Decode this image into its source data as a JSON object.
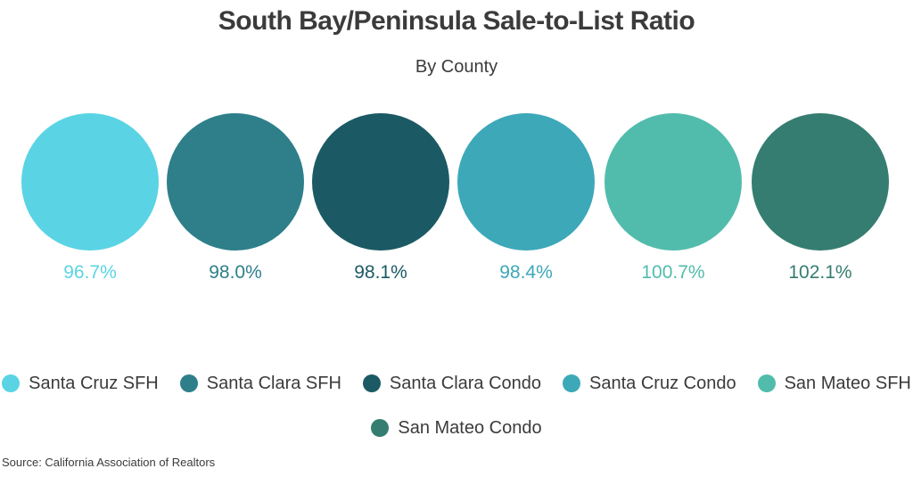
{
  "chart_data": {
    "type": "bubble",
    "title": "South Bay/Peninsula Sale-to-List Ratio",
    "subtitle": "By County",
    "unit": "%",
    "series": [
      {
        "name": "Santa Cruz SFH",
        "value": 96.7,
        "label": "96.7%",
        "color": "#5ad4e4"
      },
      {
        "name": "Santa Clara SFH",
        "value": 98.0,
        "label": "98.0%",
        "color": "#2e7f8a"
      },
      {
        "name": "Santa Clara Condo",
        "value": 98.1,
        "label": "98.1%",
        "color": "#1b5a64"
      },
      {
        "name": "Santa Cruz Condo",
        "value": 98.4,
        "label": "98.4%",
        "color": "#3da8b8"
      },
      {
        "name": "San Mateo SFH",
        "value": 100.7,
        "label": "100.7%",
        "color": "#52bcac"
      },
      {
        "name": "San Mateo Condo",
        "value": 102.1,
        "label": "102.1%",
        "color": "#357d70"
      }
    ],
    "legend_position": "bottom",
    "source": "Source:  California Association of Realtors"
  }
}
